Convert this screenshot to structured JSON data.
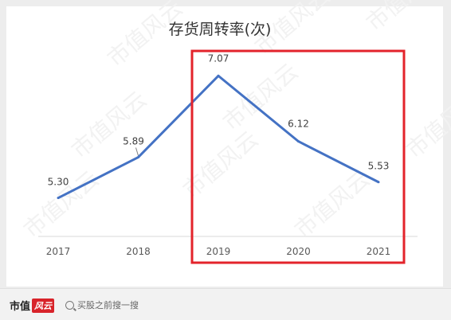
{
  "chart_data": {
    "type": "line",
    "title": "存货周转率(次)",
    "categories": [
      "2017",
      "2018",
      "2019",
      "2020",
      "2021"
    ],
    "series": [
      {
        "values": [
          5.3,
          5.89,
          7.07,
          6.12,
          5.53
        ],
        "labels": [
          "5.30",
          "5.89",
          "7.07",
          "6.12",
          "5.53"
        ],
        "color": "#4472c4"
      }
    ],
    "ylim": [
      4.5,
      7.5
    ],
    "grid": false,
    "legend": "none",
    "highlight_box": {
      "categories": [
        "2019",
        "2020",
        "2021"
      ],
      "color": "#e3232b"
    }
  },
  "watermark": {
    "text": "市值风云",
    "color": "#f2f2f2"
  },
  "footer": {
    "brand_text": "市值",
    "brand_badge": "风云",
    "search_icon": "search-icon",
    "search_text": "买股之前搜一搜"
  }
}
